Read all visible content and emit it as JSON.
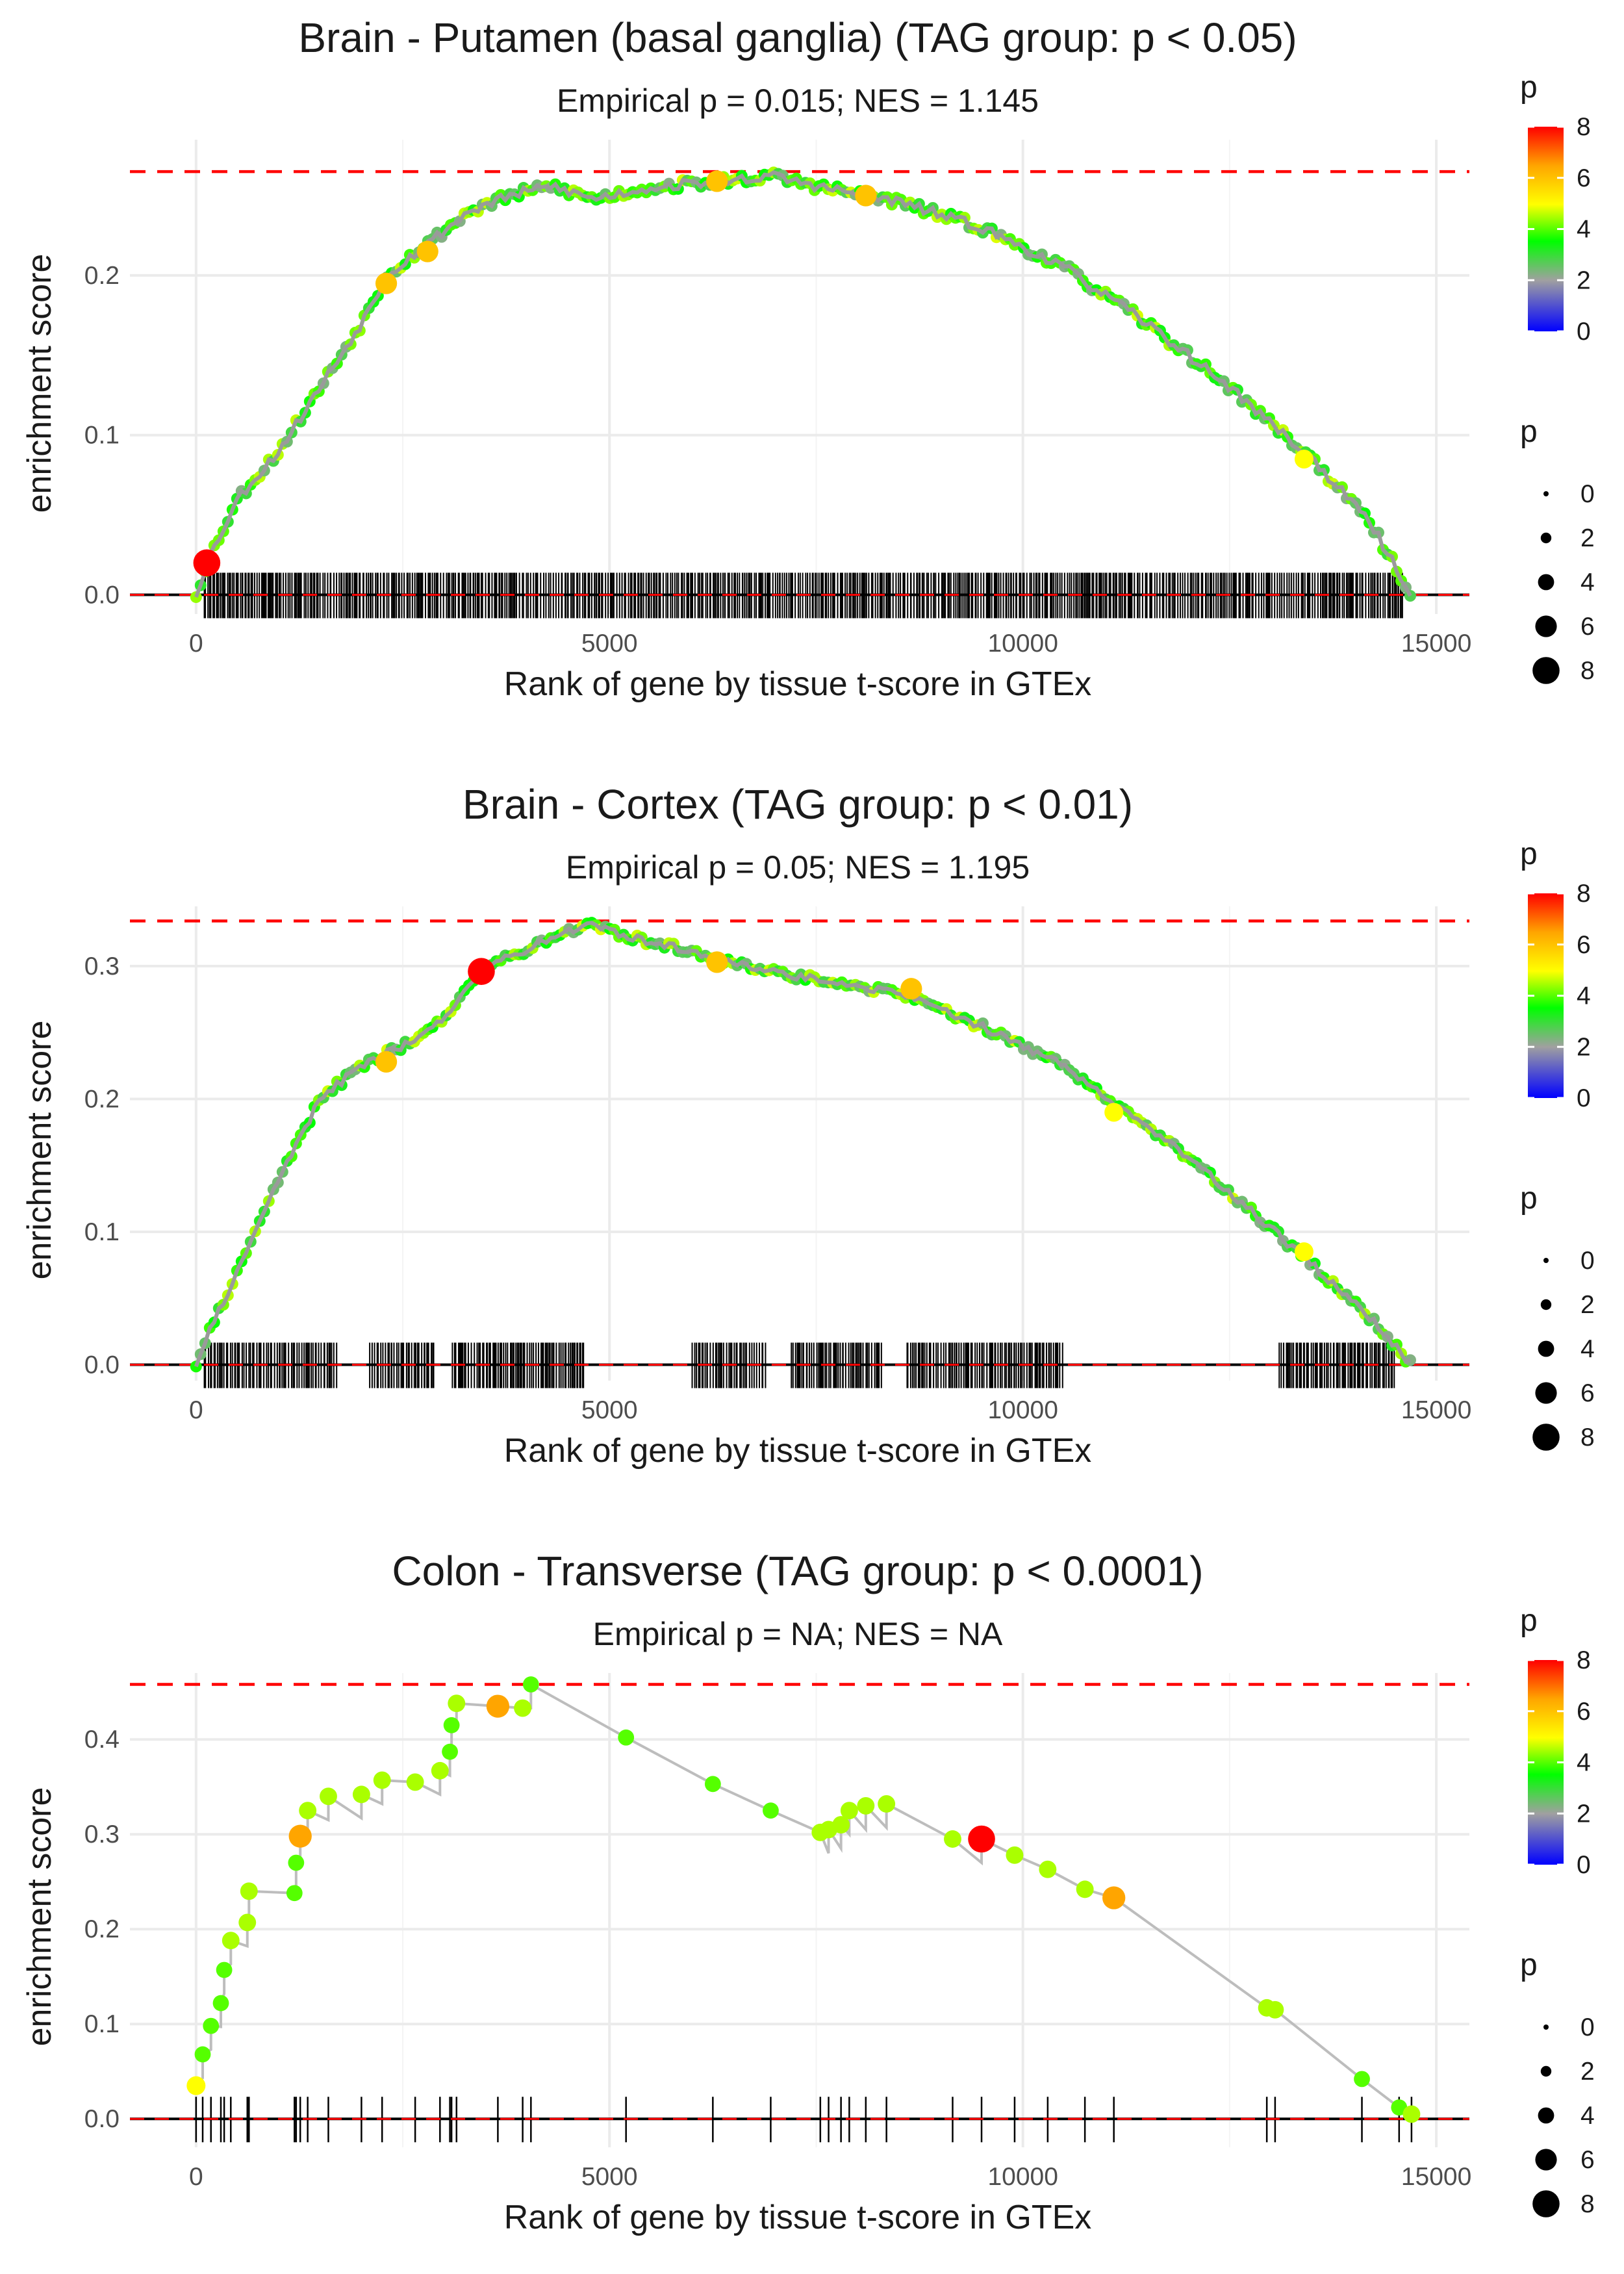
{
  "chart_data": [
    {
      "type": "line",
      "title": "Brain - Putamen (basal ganglia) (TAG group: p < 0.05)",
      "subtitle": "Empirical p = 0.015; NES = 1.145",
      "xlabel": "Rank of gene by tissue t-score in GTEx",
      "ylabel": "enrichment score",
      "xlim": [
        -800,
        15400
      ],
      "ylim": [
        -0.012,
        0.285
      ],
      "xticks": [
        0,
        5000,
        10000,
        15000
      ],
      "xtick_labels": [
        "0",
        "5000",
        "10000",
        "15000"
      ],
      "yticks": [
        0.0,
        0.1,
        0.2
      ],
      "ytick_labels": [
        "0.0",
        "0.1",
        "0.2"
      ],
      "max_es": 0.265,
      "density": "dense",
      "rug_segments": [
        [
          100,
          14600
        ]
      ],
      "curve": [
        [
          0,
          0.0
        ],
        [
          130,
          0.02
        ],
        [
          500,
          0.06
        ],
        [
          1000,
          0.09
        ],
        [
          1500,
          0.13
        ],
        [
          2000,
          0.17
        ],
        [
          2300,
          0.2
        ],
        [
          2800,
          0.22
        ],
        [
          3300,
          0.24
        ],
        [
          3800,
          0.25
        ],
        [
          4300,
          0.256
        ],
        [
          4800,
          0.248
        ],
        [
          5500,
          0.255
        ],
        [
          6500,
          0.26
        ],
        [
          7000,
          0.262
        ],
        [
          7500,
          0.256
        ],
        [
          8500,
          0.246
        ],
        [
          9500,
          0.23
        ],
        [
          10500,
          0.205
        ],
        [
          11500,
          0.17
        ],
        [
          12500,
          0.13
        ],
        [
          13500,
          0.085
        ],
        [
          14200,
          0.045
        ],
        [
          14700,
          0.0
        ]
      ],
      "highlight_points": [
        {
          "x": 130,
          "y": 0.02,
          "p": 8
        },
        {
          "x": 2300,
          "y": 0.195,
          "p": 6
        },
        {
          "x": 2800,
          "y": 0.215,
          "p": 6
        },
        {
          "x": 6300,
          "y": 0.259,
          "p": 6
        },
        {
          "x": 8100,
          "y": 0.25,
          "p": 6
        },
        {
          "x": 13400,
          "y": 0.085,
          "p": 5
        }
      ],
      "legend": {
        "color_title": "p",
        "color_ticks": [
          "0",
          "2",
          "4",
          "6",
          "8"
        ],
        "size_title": "p",
        "size_ticks": [
          "0",
          "2",
          "4",
          "6",
          "8"
        ]
      }
    },
    {
      "type": "line",
      "title": "Brain - Cortex (TAG group: p < 0.01)",
      "subtitle": "Empirical p = 0.05; NES = 1.195",
      "xlabel": "Rank of gene by tissue t-score in GTEx",
      "ylabel": "enrichment score",
      "xlim": [
        -800,
        15400
      ],
      "ylim": [
        -0.012,
        0.345
      ],
      "xticks": [
        0,
        5000,
        10000,
        15000
      ],
      "xtick_labels": [
        "0",
        "5000",
        "10000",
        "15000"
      ],
      "yticks": [
        0.0,
        0.1,
        0.2,
        0.3
      ],
      "ytick_labels": [
        "0.0",
        "0.1",
        "0.2",
        "0.3"
      ],
      "max_es": 0.334,
      "density": "dense",
      "rug_segments": [
        [
          100,
          1700
        ],
        [
          2100,
          2900
        ],
        [
          3100,
          4700
        ],
        [
          6000,
          6900
        ],
        [
          7200,
          8300
        ],
        [
          8600,
          10500
        ],
        [
          13100,
          14500
        ]
      ],
      "curve": [
        [
          0,
          0.0
        ],
        [
          200,
          0.03
        ],
        [
          500,
          0.07
        ],
        [
          1000,
          0.14
        ],
        [
          1500,
          0.2
        ],
        [
          2000,
          0.225
        ],
        [
          2500,
          0.24
        ],
        [
          3000,
          0.26
        ],
        [
          3400,
          0.295
        ],
        [
          3700,
          0.305
        ],
        [
          4200,
          0.318
        ],
        [
          4700,
          0.332
        ],
        [
          5200,
          0.322
        ],
        [
          6000,
          0.312
        ],
        [
          6500,
          0.302
        ],
        [
          7500,
          0.29
        ],
        [
          8500,
          0.28
        ],
        [
          9500,
          0.255
        ],
        [
          10500,
          0.225
        ],
        [
          11500,
          0.18
        ],
        [
          12500,
          0.13
        ],
        [
          13500,
          0.075
        ],
        [
          14200,
          0.035
        ],
        [
          14700,
          0.0
        ]
      ],
      "highlight_points": [
        {
          "x": 3450,
          "y": 0.296,
          "p": 8
        },
        {
          "x": 2300,
          "y": 0.228,
          "p": 6
        },
        {
          "x": 6300,
          "y": 0.303,
          "p": 6
        },
        {
          "x": 8650,
          "y": 0.283,
          "p": 6
        },
        {
          "x": 11100,
          "y": 0.19,
          "p": 5
        },
        {
          "x": 13400,
          "y": 0.085,
          "p": 5
        }
      ],
      "legend": {
        "color_title": "p",
        "color_ticks": [
          "0",
          "2",
          "4",
          "6",
          "8"
        ],
        "size_title": "p",
        "size_ticks": [
          "0",
          "2",
          "4",
          "6",
          "8"
        ]
      }
    },
    {
      "type": "line",
      "title": "Colon - Transverse (TAG group: p < 0.0001)",
      "subtitle": "Empirical p = NA; NES = NA",
      "xlabel": "Rank of gene by tissue t-score in GTEx",
      "ylabel": "enrichment score",
      "xlim": [
        -800,
        15400
      ],
      "ylim": [
        -0.03,
        0.47
      ],
      "xticks": [
        0,
        5000,
        10000,
        15000
      ],
      "xtick_labels": [
        "0",
        "5000",
        "10000",
        "15000"
      ],
      "yticks": [
        0.0,
        0.1,
        0.2,
        0.3,
        0.4
      ],
      "ytick_labels": [
        "0.0",
        "0.1",
        "0.2",
        "0.3",
        "0.4"
      ],
      "max_es": 0.458,
      "density": "sparse",
      "points": [
        [
          0,
          0.035,
          5
        ],
        [
          80,
          0.068,
          4
        ],
        [
          180,
          0.098,
          4
        ],
        [
          300,
          0.122,
          4
        ],
        [
          340,
          0.157,
          4
        ],
        [
          420,
          0.188,
          4.5
        ],
        [
          620,
          0.207,
          4.5
        ],
        [
          640,
          0.24,
          4.5
        ],
        [
          1190,
          0.238,
          4
        ],
        [
          1210,
          0.27,
          4
        ],
        [
          1260,
          0.298,
          6.5
        ],
        [
          1350,
          0.325,
          4.5
        ],
        [
          1600,
          0.34,
          4.5
        ],
        [
          2000,
          0.342,
          4.5
        ],
        [
          2250,
          0.357,
          4.5
        ],
        [
          2650,
          0.355,
          4.5
        ],
        [
          2950,
          0.367,
          4.5
        ],
        [
          3070,
          0.387,
          4
        ],
        [
          3090,
          0.415,
          4
        ],
        [
          3150,
          0.438,
          4.5
        ],
        [
          3650,
          0.435,
          6.5
        ],
        [
          3950,
          0.433,
          4.5
        ],
        [
          4050,
          0.458,
          4
        ],
        [
          5200,
          0.402,
          4
        ],
        [
          6250,
          0.353,
          4
        ],
        [
          6950,
          0.325,
          4
        ],
        [
          7550,
          0.302,
          4.5
        ],
        [
          7650,
          0.305,
          4.5
        ],
        [
          7800,
          0.31,
          4.5
        ],
        [
          7900,
          0.325,
          4.5
        ],
        [
          8100,
          0.33,
          4.5
        ],
        [
          8350,
          0.332,
          4.5
        ],
        [
          9150,
          0.295,
          4.5
        ],
        [
          9500,
          0.295,
          8
        ],
        [
          9900,
          0.278,
          4.5
        ],
        [
          10300,
          0.263,
          4.5
        ],
        [
          10750,
          0.242,
          4.5
        ],
        [
          11100,
          0.233,
          6.5
        ],
        [
          12950,
          0.117,
          4.5
        ],
        [
          13050,
          0.115,
          4.5
        ],
        [
          14100,
          0.042,
          4
        ],
        [
          14550,
          0.012,
          4
        ],
        [
          14700,
          0.005,
          4.5
        ]
      ],
      "legend": {
        "color_title": "p",
        "color_ticks": [
          "0",
          "2",
          "4",
          "6",
          "8"
        ],
        "size_title": "p",
        "size_ticks": [
          "0",
          "2",
          "4",
          "6",
          "8"
        ]
      }
    }
  ]
}
